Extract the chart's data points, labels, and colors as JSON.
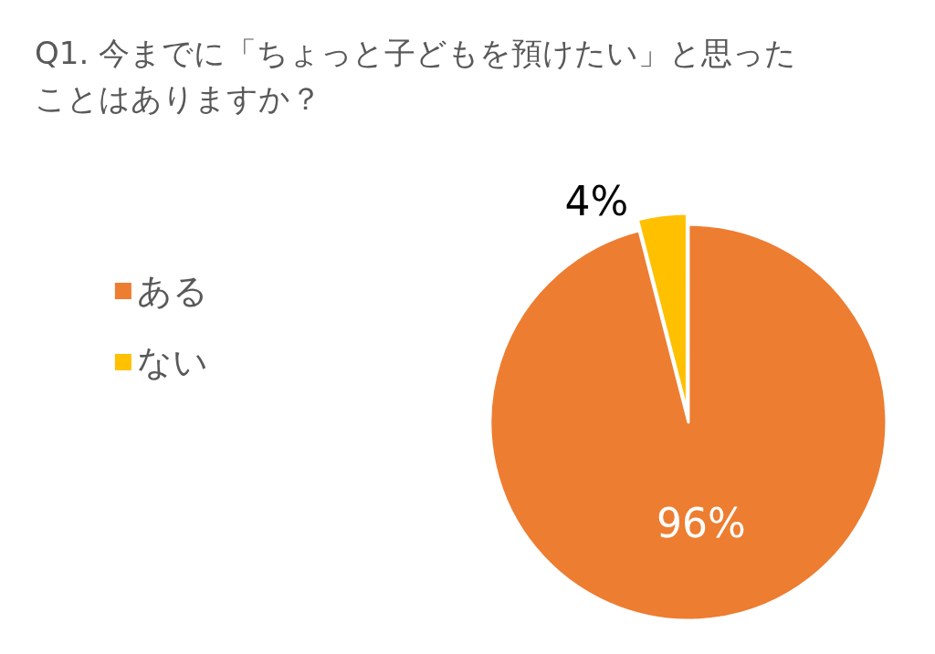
{
  "chart_data": {
    "type": "pie",
    "title": "Q1. 今までに「ちょっと子どもを預けたい」と思ったことはありますか？",
    "categories": [
      "ある",
      "ない"
    ],
    "values": [
      96,
      4
    ],
    "colors": [
      "#ed7d31",
      "#ffc000"
    ],
    "value_labels": [
      "96%",
      "4%"
    ],
    "legend": "left"
  }
}
